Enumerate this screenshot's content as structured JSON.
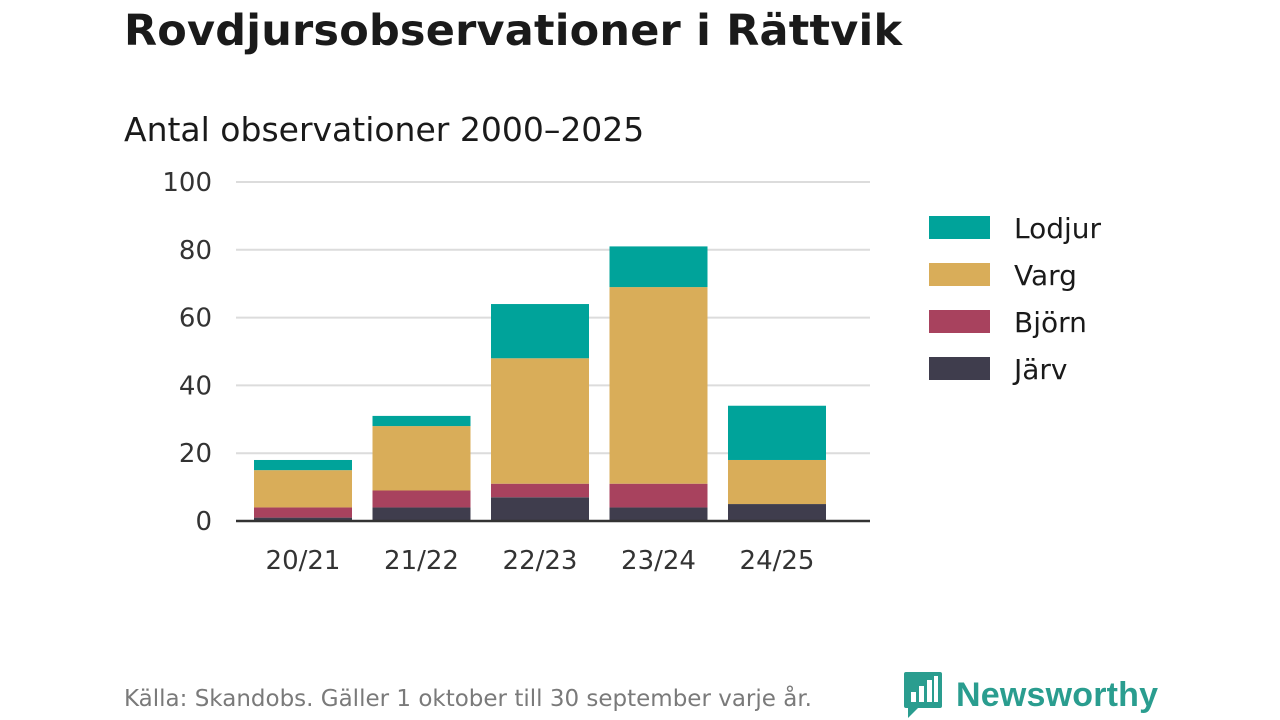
{
  "title": "Rovdjursobservationer i Rättvik",
  "subtitle": "Antal observationer 2000–2025",
  "footer": "Källa: Skandobs. Gäller 1 oktober till 30 september varje år.",
  "brand": {
    "name": "Newsworthy",
    "icon": "newsworthy-logo-icon",
    "color": "#2a9d8f"
  },
  "chart_data": {
    "type": "bar",
    "stacked": true,
    "title": "Antal observationer 2000–2025",
    "xlabel": "",
    "ylabel": "",
    "categories": [
      "20/21",
      "21/22",
      "22/23",
      "23/24",
      "24/25"
    ],
    "ylim": [
      0,
      100
    ],
    "yticks": [
      0,
      20,
      40,
      60,
      80,
      100
    ],
    "grid": true,
    "legend_position": "right",
    "series": [
      {
        "name": "Järv",
        "color": "#3f3d4d",
        "values": [
          1,
          4,
          7,
          4,
          5
        ]
      },
      {
        "name": "Björn",
        "color": "#a8425e",
        "values": [
          3,
          5,
          4,
          7,
          0
        ]
      },
      {
        "name": "Varg",
        "color": "#d9ad59",
        "values": [
          11,
          19,
          37,
          58,
          13
        ]
      },
      {
        "name": "Lodjur",
        "color": "#00a39a",
        "values": [
          3,
          3,
          16,
          12,
          16
        ]
      }
    ],
    "legend_order": [
      "Lodjur",
      "Varg",
      "Björn",
      "Järv"
    ]
  }
}
